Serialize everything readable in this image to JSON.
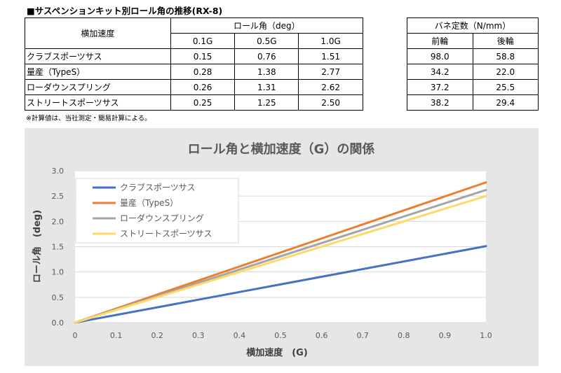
{
  "page_title": "■サスペンションキット別ロール角の推移(RX-8)",
  "roll_table": {
    "header_label": "横加速度",
    "group_header": "ロール角（deg）",
    "columns": [
      "0.1G",
      "0.5G",
      "1.0G"
    ],
    "rows": [
      {
        "name": "クラブスポーツサス",
        "values": [
          "0.15",
          "0.76",
          "1.51"
        ]
      },
      {
        "name": "量産（TypeS）",
        "values": [
          "0.28",
          "1.38",
          "2.77"
        ]
      },
      {
        "name": "ローダウンスプリング",
        "values": [
          "0.26",
          "1.31",
          "2.62"
        ]
      },
      {
        "name": "ストリートスポーツサス",
        "values": [
          "0.25",
          "1.25",
          "2.50"
        ]
      }
    ]
  },
  "spring_table": {
    "group_header": "バネ定数（N/mm）",
    "columns": [
      "前輪",
      "後輪"
    ],
    "rows": [
      [
        "98.0",
        "58.8"
      ],
      [
        "34.2",
        "22.0"
      ],
      [
        "37.2",
        "25.5"
      ],
      [
        "38.2",
        "29.4"
      ]
    ]
  },
  "note": "※計算値は、当社測定・簡易計算による。",
  "chart_data": {
    "type": "line",
    "title": "ロール角と横加速度（G）の関係",
    "xlabel": "横加速度　(G)",
    "ylabel": "ロール角　(deg)",
    "xlim": [
      0,
      1.0
    ],
    "ylim": [
      0,
      3.0
    ],
    "x_ticks": [
      "0",
      "0.1",
      "0.2",
      "0.3",
      "0.4",
      "0.5",
      "0.6",
      "0.7",
      "0.8",
      "0.9",
      "1.0"
    ],
    "y_ticks": [
      "0.0",
      "0.5",
      "1.0",
      "1.5",
      "2.0",
      "2.5",
      "3.0"
    ],
    "grid": "horizontal",
    "legend_position": "top-left",
    "series": [
      {
        "name": "クラブスポーツサス",
        "color": "#4472c4",
        "x": [
          0,
          1.0
        ],
        "y": [
          0,
          1.51
        ]
      },
      {
        "name": "量産（TypeS）",
        "color": "#ed7d31",
        "x": [
          0,
          1.0
        ],
        "y": [
          0,
          2.77
        ]
      },
      {
        "name": "ローダウンスプリング",
        "color": "#a5a5a5",
        "x": [
          0,
          1.0
        ],
        "y": [
          0,
          2.62
        ]
      },
      {
        "name": "ストリートスポーツサス",
        "color": "#ffd966",
        "x": [
          0,
          1.0
        ],
        "y": [
          0,
          2.5
        ]
      }
    ]
  }
}
